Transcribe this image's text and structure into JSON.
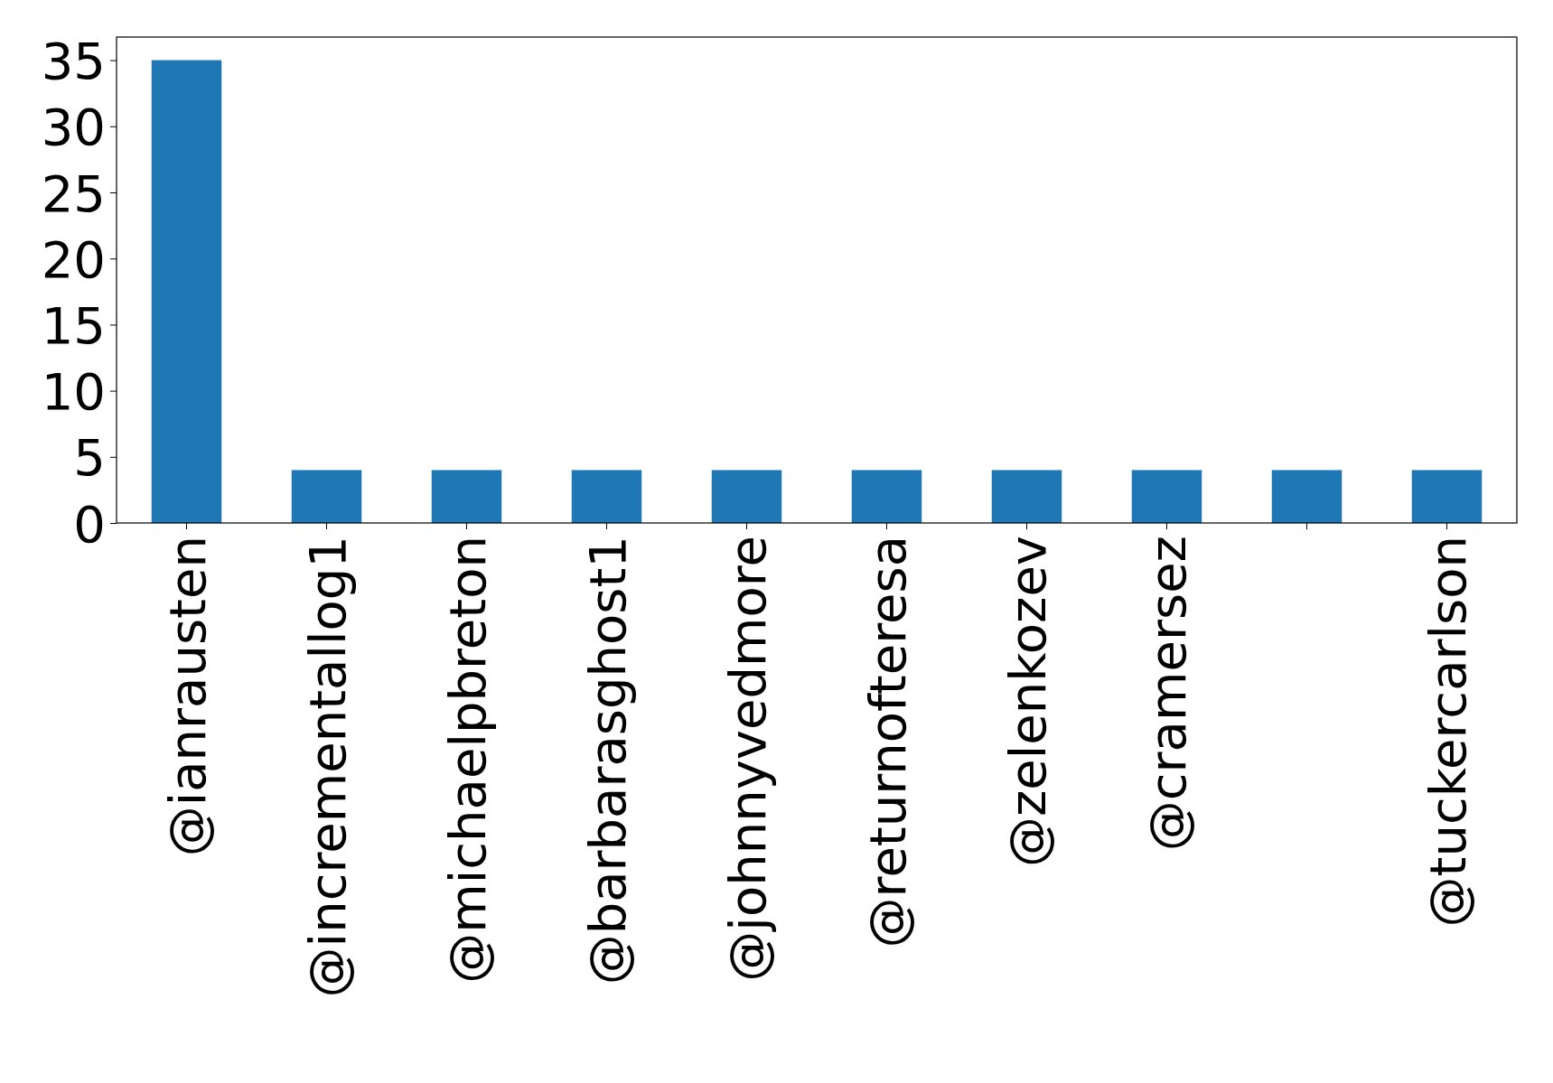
{
  "chart_data": {
    "type": "bar",
    "categories": [
      "@ianrausten",
      "@incrementallog1",
      "@michaelpbreton",
      "@barbarasghost1",
      "@johnnyvedmore",
      "@returnofteresa",
      "@zelenkozev",
      "@cramersez",
      null,
      "@tuckercarlson"
    ],
    "values": [
      35,
      4,
      4,
      4,
      4,
      4,
      4,
      4,
      4,
      4
    ],
    "color": "#1f77b4",
    "ylim": [
      0,
      36.75
    ],
    "yticks": [
      0,
      5,
      10,
      15,
      20,
      25,
      30,
      35
    ],
    "grid": false
  }
}
